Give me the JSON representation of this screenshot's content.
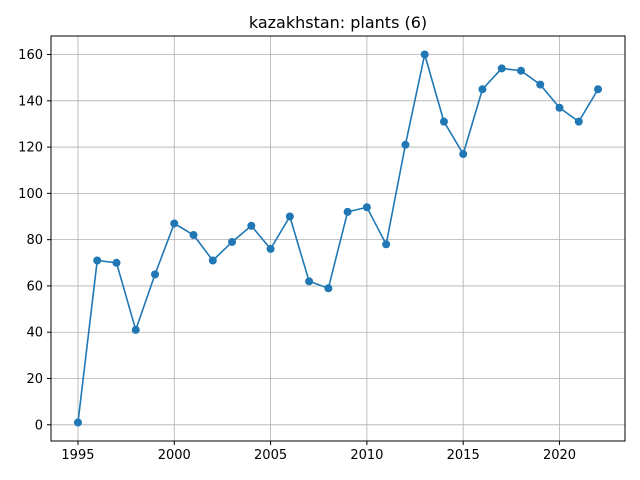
{
  "chart_data": {
    "type": "line",
    "title": "kazakhstan: plants (6)",
    "xlabel": "",
    "ylabel": "",
    "xlim": [
      1993.6,
      2023.4
    ],
    "ylim": [
      -7,
      168
    ],
    "xticks": [
      1995,
      2000,
      2005,
      2010,
      2015,
      2020
    ],
    "yticks": [
      0,
      20,
      40,
      60,
      80,
      100,
      120,
      140,
      160
    ],
    "grid": true,
    "series": [
      {
        "color": "#1f77b4",
        "marker": "circle",
        "x": [
          1995,
          1996,
          1997,
          1998,
          1999,
          2000,
          2001,
          2002,
          2003,
          2004,
          2005,
          2006,
          2007,
          2008,
          2009,
          2010,
          2011,
          2012,
          2013,
          2014,
          2015,
          2016,
          2017,
          2018,
          2019,
          2020,
          2021,
          2022
        ],
        "y": [
          1,
          71,
          70,
          41,
          65,
          87,
          82,
          71,
          79,
          86,
          76,
          90,
          62,
          59,
          92,
          94,
          78,
          121,
          160,
          131,
          117,
          145,
          154,
          153,
          147,
          137,
          131,
          145
        ]
      }
    ]
  }
}
